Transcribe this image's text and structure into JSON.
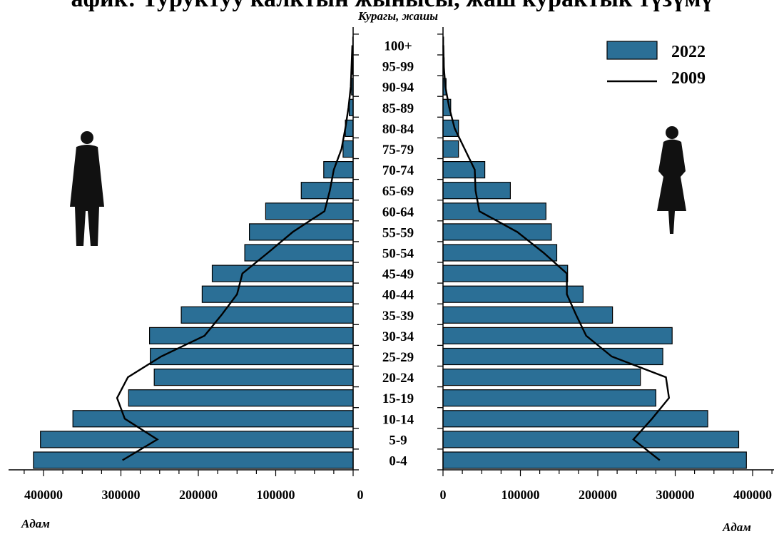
{
  "title": "афик: Туруктуу калктын жынысы, жаш курактык түзүмү",
  "chart_data": {
    "type": "bar",
    "orientation": "population-pyramid",
    "age_axis_label": "Курагы, жашы",
    "x_axis_label": "Адам",
    "categories": [
      "0-4",
      "5-9",
      "10-14",
      "15-19",
      "20-24",
      "25-29",
      "30-34",
      "35-39",
      "40-44",
      "45-49",
      "50-54",
      "55-59",
      "60-64",
      "65-69",
      "70-74",
      "75-79",
      "80-84",
      "85-89",
      "90-94",
      "95-99",
      "100+"
    ],
    "xlim": [
      0,
      400000
    ],
    "left_ticks": [
      "400000",
      "300000",
      "200000",
      "100000",
      "0"
    ],
    "right_ticks": [
      "0",
      "100000",
      "200000",
      "300000",
      "400000"
    ],
    "series": [
      {
        "name": "2022",
        "kind": "bar",
        "color": "#2b6f96",
        "male": [
          413000,
          404000,
          362000,
          290000,
          257000,
          262000,
          263000,
          222000,
          195000,
          182000,
          140000,
          134000,
          113000,
          67000,
          38000,
          13000,
          10000,
          5000,
          2000,
          1000,
          500
        ],
        "female": [
          392000,
          382000,
          342000,
          275000,
          255000,
          284000,
          296000,
          219000,
          181000,
          161000,
          147000,
          140000,
          133000,
          87000,
          54000,
          20000,
          20000,
          10000,
          4000,
          1500,
          700
        ]
      },
      {
        "name": "2009",
        "kind": "line",
        "color": "#000000",
        "male": [
          298000,
          253000,
          295000,
          305000,
          291000,
          248000,
          192000,
          170000,
          150000,
          143000,
          110000,
          78000,
          37000,
          30000,
          25000,
          15000,
          10000,
          6000,
          3000,
          2000,
          1000
        ],
        "female": [
          280000,
          246000,
          270000,
          292000,
          288000,
          218000,
          185000,
          172000,
          160000,
          160000,
          130000,
          96000,
          47000,
          42000,
          41000,
          28000,
          15000,
          8000,
          3000,
          1000,
          500
        ]
      }
    ],
    "legend": "top-right",
    "grid": false
  }
}
